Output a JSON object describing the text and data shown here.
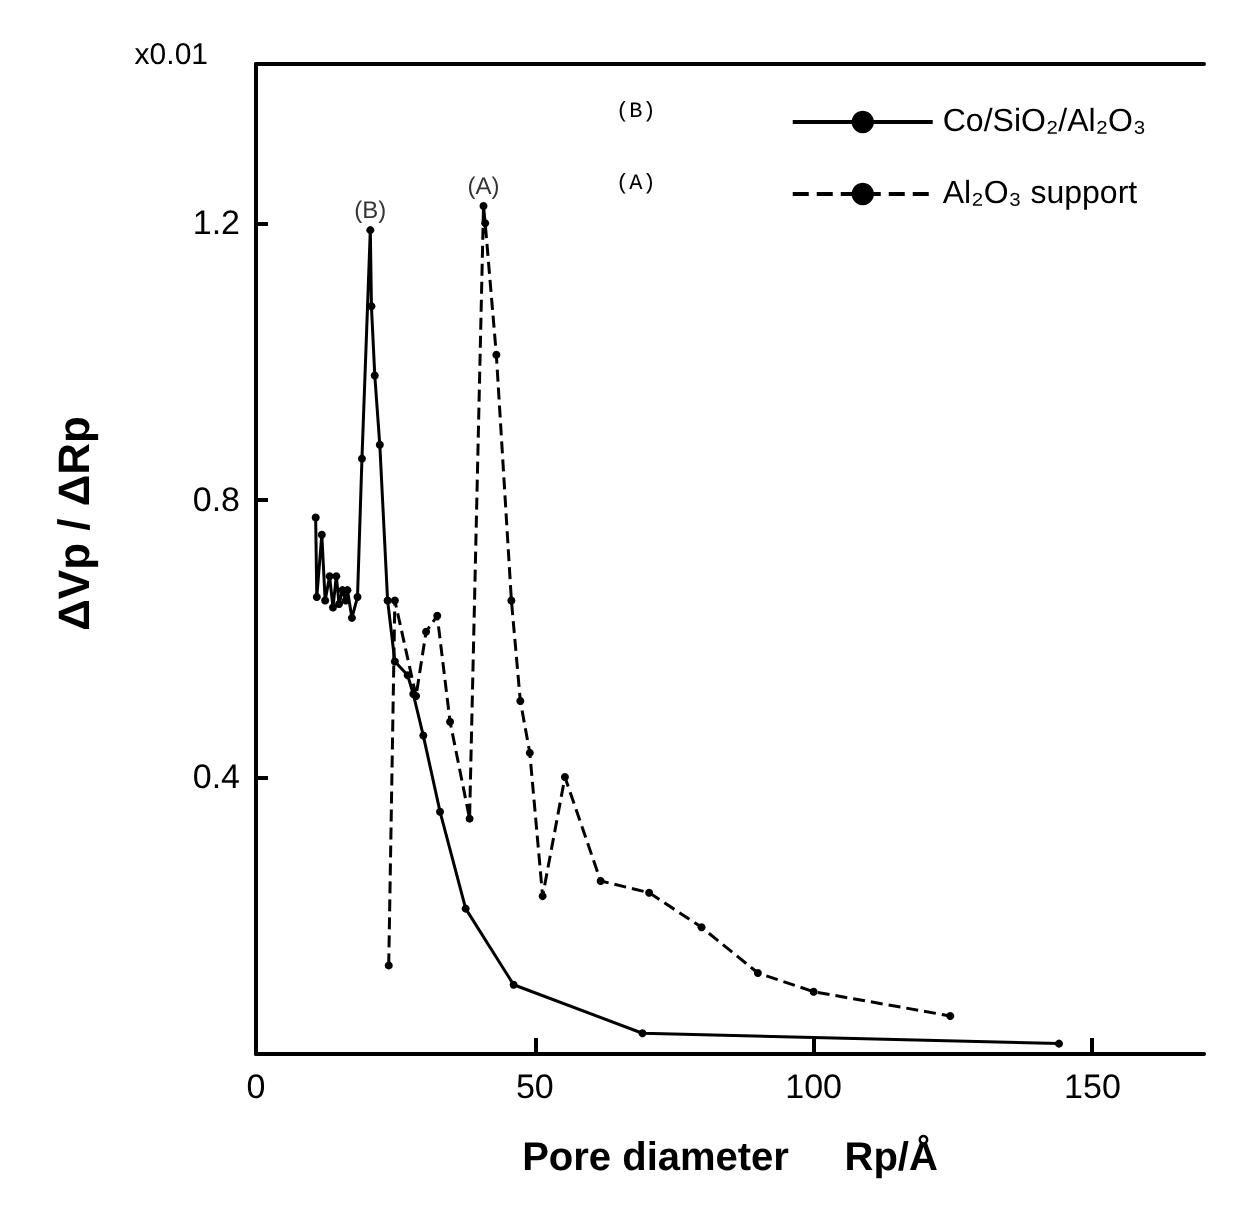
{
  "chart_data": {
    "type": "line",
    "xlabel": "Pore diameter     Rp/Å",
    "ylabel": "ΔVp / ΔRp",
    "xlim": [
      0,
      170
    ],
    "ylim": [
      0,
      1.43
    ],
    "xticks": [
      0,
      50,
      100,
      150
    ],
    "yticks": [
      0.4,
      0.8,
      1.2
    ],
    "grid": false,
    "legend": "top right",
    "marker": "circle",
    "annotations": [
      "x0.01",
      "(B)",
      "(A)",
      {
        "text": "(B)",
        "x": 20.5,
        "y": 1.19
      },
      {
        "text": "(A)",
        "x": 40.8,
        "y": 1.225
      }
    ],
    "series": [
      {
        "name": "Co/SiO₂/Al₂O₃",
        "color": "#000000",
        "line_style": "solid",
        "x": [
          10.7,
          10.9,
          11.8,
          12.4,
          13.2,
          13.8,
          14.4,
          14.9,
          15.5,
          16.1,
          16.4,
          17.2,
          18.2,
          19.0,
          20.5,
          20.7,
          21.3,
          22.2,
          23.6,
          24.9,
          27.2,
          28.2,
          30.0,
          33.0,
          37.6,
          46.2,
          69.3,
          144
        ],
        "values": [
          0.775,
          0.66,
          0.75,
          0.655,
          0.69,
          0.645,
          0.69,
          0.65,
          0.67,
          0.655,
          0.67,
          0.63,
          0.66,
          0.86,
          1.19,
          1.08,
          0.98,
          0.88,
          0.655,
          0.567,
          0.547,
          0.52,
          0.46,
          0.35,
          0.21,
          0.1,
          0.03,
          0.015
        ]
      },
      {
        "name": "Al₂O₃ support",
        "color": "#000000",
        "line_style": "dashed",
        "x": [
          23.8,
          24.9,
          28.7,
          30.5,
          32.5,
          34.8,
          38.3,
          40.8,
          41.1,
          43.1,
          45.8,
          47.4,
          49.1,
          51.4,
          55.4,
          61.8,
          70.5,
          79.9,
          90,
          100,
          124.5
        ],
        "values": [
          0.128,
          0.655,
          0.517,
          0.61,
          0.633,
          0.48,
          0.34,
          1.225,
          1.2,
          1.01,
          0.655,
          0.51,
          0.435,
          0.228,
          0.4,
          0.25,
          0.233,
          0.183,
          0.117,
          0.09,
          0.055
        ]
      }
    ]
  }
}
